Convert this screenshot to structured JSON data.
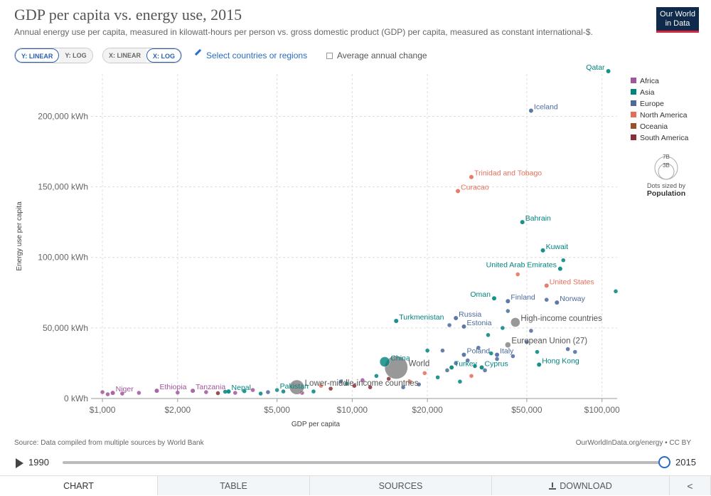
{
  "header": {
    "title": "GDP per capita vs. energy use, 2015",
    "subtitle": "Annual energy use per capita, measured in kilowatt-hours per person vs. gross domestic product (GDP) per capita, measured as constant international-$.",
    "logo_line1": "Our World",
    "logo_line2": "in Data"
  },
  "controls": {
    "y_linear": "Y: LINEAR",
    "y_log": "Y: LOG",
    "x_linear": "X: LINEAR",
    "x_log": "X: LOG",
    "select_countries": "Select countries or regions",
    "average_change": "Average annual change"
  },
  "legend": {
    "items": [
      {
        "label": "Africa",
        "color": "#a2559c"
      },
      {
        "label": "Asia",
        "color": "#00847e"
      },
      {
        "label": "Europe",
        "color": "#4c6a9c"
      },
      {
        "label": "North America",
        "color": "#e56e5a"
      },
      {
        "label": "Oceania",
        "color": "#9a5129"
      },
      {
        "label": "South America",
        "color": "#883039"
      }
    ],
    "size_big": "7B",
    "size_small": "3B",
    "size_caption": "Dots sized by",
    "size_variable": "Population"
  },
  "chart_data": {
    "type": "scatter",
    "title": "GDP per capita vs. energy use, 2015",
    "xlabel": "GDP per capita",
    "ylabel": "Energy use per capita",
    "x_scale": "log",
    "y_scale": "linear",
    "xlim": [
      900,
      115000
    ],
    "ylim": [
      0,
      230000
    ],
    "x_ticks": [
      {
        "value": 1000,
        "label": "$1,000"
      },
      {
        "value": 2000,
        "label": "$2,000"
      },
      {
        "value": 5000,
        "label": "$5,000"
      },
      {
        "value": 10000,
        "label": "$10,000"
      },
      {
        "value": 20000,
        "label": "$20,000"
      },
      {
        "value": 50000,
        "label": "$50,000"
      },
      {
        "value": 100000,
        "label": "$100,000"
      }
    ],
    "y_ticks": [
      {
        "value": 0,
        "label": "0 kWh"
      },
      {
        "value": 50000,
        "label": "50,000 kWh"
      },
      {
        "value": 100000,
        "label": "100,000 kWh"
      },
      {
        "value": 150000,
        "label": "150,000 kWh"
      },
      {
        "value": 200000,
        "label": "200,000 kWh"
      }
    ],
    "grid": true,
    "legend_position": "right",
    "labeled_points": [
      {
        "name": "Qatar",
        "x": 106000,
        "y": 232000,
        "region": "Asia",
        "label_side": "left"
      },
      {
        "name": "Iceland",
        "x": 52000,
        "y": 204000,
        "region": "Europe",
        "label_side": "right"
      },
      {
        "name": "Trinidad and Tobago",
        "x": 30000,
        "y": 157000,
        "region": "North America",
        "label_side": "right"
      },
      {
        "name": "Curacao",
        "x": 26500,
        "y": 147000,
        "region": "North America",
        "label_side": "right"
      },
      {
        "name": "Bahrain",
        "x": 48000,
        "y": 125000,
        "region": "Asia",
        "label_side": "right"
      },
      {
        "name": "Kuwait",
        "x": 58000,
        "y": 105000,
        "region": "Asia",
        "label_side": "right"
      },
      {
        "name": "United Arab Emirates",
        "x": 68000,
        "y": 92000,
        "region": "Asia",
        "label_side": "left"
      },
      {
        "name": "United States",
        "x": 60000,
        "y": 80000,
        "region": "North America",
        "label_side": "right"
      },
      {
        "name": "Norway",
        "x": 66000,
        "y": 68000,
        "region": "Europe",
        "label_side": "right"
      },
      {
        "name": "Finland",
        "x": 42000,
        "y": 69000,
        "region": "Europe",
        "label_side": "right"
      },
      {
        "name": "Oman",
        "x": 37000,
        "y": 71000,
        "region": "Asia",
        "label_side": "left"
      },
      {
        "name": "Turkmenistan",
        "x": 15000,
        "y": 55000,
        "region": "Asia",
        "label_side": "right"
      },
      {
        "name": "Russia",
        "x": 26000,
        "y": 57000,
        "region": "Europe",
        "label_side": "right"
      },
      {
        "name": "High-income countries",
        "x": 45000,
        "y": 54000,
        "region": "World",
        "label_side": "right",
        "pop": 1200
      },
      {
        "name": "Estonia",
        "x": 28000,
        "y": 51000,
        "region": "Europe",
        "label_side": "right"
      },
      {
        "name": "European Union (27)",
        "x": 42000,
        "y": 38000,
        "region": "World",
        "label_side": "right",
        "pop": 450
      },
      {
        "name": "Poland",
        "x": 28000,
        "y": 31000,
        "region": "Europe",
        "label_side": "right"
      },
      {
        "name": "Italy",
        "x": 38000,
        "y": 31000,
        "region": "Europe",
        "label_side": "right"
      },
      {
        "name": "Turkey",
        "x": 25000,
        "y": 22000,
        "region": "Asia",
        "label_side": "right"
      },
      {
        "name": "Cyprus",
        "x": 33000,
        "y": 22000,
        "region": "Asia",
        "label_side": "right"
      },
      {
        "name": "Hong Kong",
        "x": 56000,
        "y": 24000,
        "region": "Asia",
        "label_side": "right"
      },
      {
        "name": "China",
        "x": 13500,
        "y": 26000,
        "region": "Asia",
        "label_side": "right",
        "pop": 1400
      },
      {
        "name": "World",
        "x": 15000,
        "y": 22000,
        "region": "World",
        "label_side": "right",
        "pop": 7300
      },
      {
        "name": "Lower-middle-income countries",
        "x": 6000,
        "y": 8000,
        "region": "World",
        "label_side": "right",
        "pop": 2900
      },
      {
        "name": "Pakistan",
        "x": 5000,
        "y": 6000,
        "region": "Asia",
        "label_side": "right",
        "pop": 200
      },
      {
        "name": "Nepal",
        "x": 3200,
        "y": 5000,
        "region": "Asia",
        "label_side": "right"
      },
      {
        "name": "Tanzania",
        "x": 2300,
        "y": 5500,
        "region": "Africa",
        "label_side": "right"
      },
      {
        "name": "Ethiopia",
        "x": 1650,
        "y": 5500,
        "region": "Africa",
        "label_side": "right"
      },
      {
        "name": "Niger",
        "x": 1100,
        "y": 4000,
        "region": "Africa",
        "label_side": "right"
      }
    ],
    "other_points": [
      [
        1000,
        4500,
        "Africa"
      ],
      [
        1050,
        3000,
        "Africa"
      ],
      [
        1200,
        3500,
        "Africa"
      ],
      [
        1400,
        4000,
        "Africa"
      ],
      [
        2000,
        4200,
        "Africa"
      ],
      [
        2600,
        4500,
        "Africa"
      ],
      [
        2900,
        3800,
        "South America"
      ],
      [
        3100,
        4800,
        "Asia"
      ],
      [
        3400,
        4000,
        "Africa"
      ],
      [
        3700,
        5200,
        "Asia"
      ],
      [
        4000,
        6000,
        "Africa"
      ],
      [
        4300,
        3500,
        "Asia"
      ],
      [
        4600,
        4500,
        "Europe"
      ],
      [
        5300,
        5000,
        "Asia"
      ],
      [
        6300,
        4000,
        "Africa"
      ],
      [
        7000,
        5000,
        "Asia"
      ],
      [
        7500,
        9000,
        "North America"
      ],
      [
        8200,
        7000,
        "South America"
      ],
      [
        9000,
        12000,
        "Europe"
      ],
      [
        9500,
        10500,
        "Asia"
      ],
      [
        10200,
        9000,
        "South America"
      ],
      [
        11000,
        13000,
        "Africa"
      ],
      [
        11800,
        8000,
        "South America"
      ],
      [
        12500,
        16000,
        "Asia"
      ],
      [
        14000,
        14000,
        "South America"
      ],
      [
        16000,
        8000,
        "Europe"
      ],
      [
        17000,
        12000,
        "North America"
      ],
      [
        18500,
        10000,
        "Europe"
      ],
      [
        19500,
        18000,
        "North America"
      ],
      [
        20000,
        34000,
        "Asia"
      ],
      [
        22000,
        15000,
        "Asia"
      ],
      [
        23000,
        34000,
        "Europe"
      ],
      [
        24000,
        20000,
        "Europe"
      ],
      [
        24500,
        52000,
        "Europe"
      ],
      [
        26000,
        25000,
        "Europe"
      ],
      [
        27000,
        12000,
        "Asia"
      ],
      [
        29000,
        27000,
        "Europe"
      ],
      [
        30000,
        16000,
        "North America"
      ],
      [
        31000,
        23000,
        "Asia"
      ],
      [
        32000,
        36000,
        "Europe"
      ],
      [
        34000,
        20000,
        "Europe"
      ],
      [
        35000,
        45000,
        "Asia"
      ],
      [
        36000,
        32000,
        "Asia"
      ],
      [
        38000,
        28000,
        "Europe"
      ],
      [
        40000,
        50000,
        "Asia"
      ],
      [
        42000,
        62000,
        "Europe"
      ],
      [
        44000,
        30000,
        "Europe"
      ],
      [
        46000,
        88000,
        "North America"
      ],
      [
        50000,
        40000,
        "Europe"
      ],
      [
        52000,
        48000,
        "Europe"
      ],
      [
        55000,
        33000,
        "Asia"
      ],
      [
        60000,
        70000,
        "Europe"
      ],
      [
        70000,
        98000,
        "Asia"
      ],
      [
        73000,
        35000,
        "Europe"
      ],
      [
        78000,
        33000,
        "Europe"
      ],
      [
        118000,
        76000,
        "Asia"
      ]
    ]
  },
  "footer": {
    "source": "Source: Data compiled from multiple sources by World Bank",
    "credit": "OurWorldInData.org/energy • CC BY"
  },
  "timeline": {
    "start_year": "1990",
    "end_year": "2015"
  },
  "tabs": [
    {
      "label": "CHART"
    },
    {
      "label": "TABLE"
    },
    {
      "label": "SOURCES"
    },
    {
      "label": "DOWNLOAD"
    },
    {
      "label": "<"
    }
  ]
}
